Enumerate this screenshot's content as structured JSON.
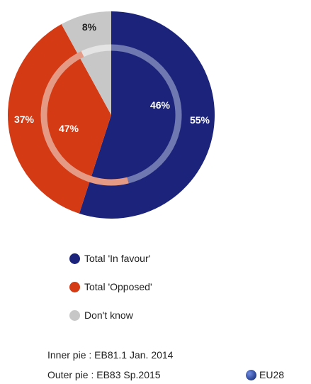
{
  "chart_data": {
    "type": "pie",
    "subtype": "nested-donut",
    "categories": [
      "Total 'In favour'",
      "Total 'Opposed'",
      "Don't know"
    ],
    "colors": [
      "#1b237a",
      "#d43a14",
      "#c7c7c7"
    ],
    "series": [
      {
        "name": "Outer pie",
        "values": [
          55,
          37,
          8
        ],
        "labels": [
          "55%",
          "37%",
          "8%"
        ]
      },
      {
        "name": "Inner pie",
        "values": [
          46,
          47,
          7
        ],
        "labels": [
          "46%",
          "47%",
          ""
        ]
      }
    ]
  },
  "legend": {
    "items": [
      {
        "label": "Total 'In favour'",
        "color": "#1b237a"
      },
      {
        "label": "Total 'Opposed'",
        "color": "#d43a14"
      },
      {
        "label": "Don't know",
        "color": "#c7c7c7"
      }
    ]
  },
  "footnotes": {
    "inner": "Inner pie : EB81.1 Jan. 2014",
    "outer": "Outer pie : EB83 Sp.2015"
  },
  "region": {
    "label": "EU28",
    "icon": "eu-globe-icon"
  }
}
